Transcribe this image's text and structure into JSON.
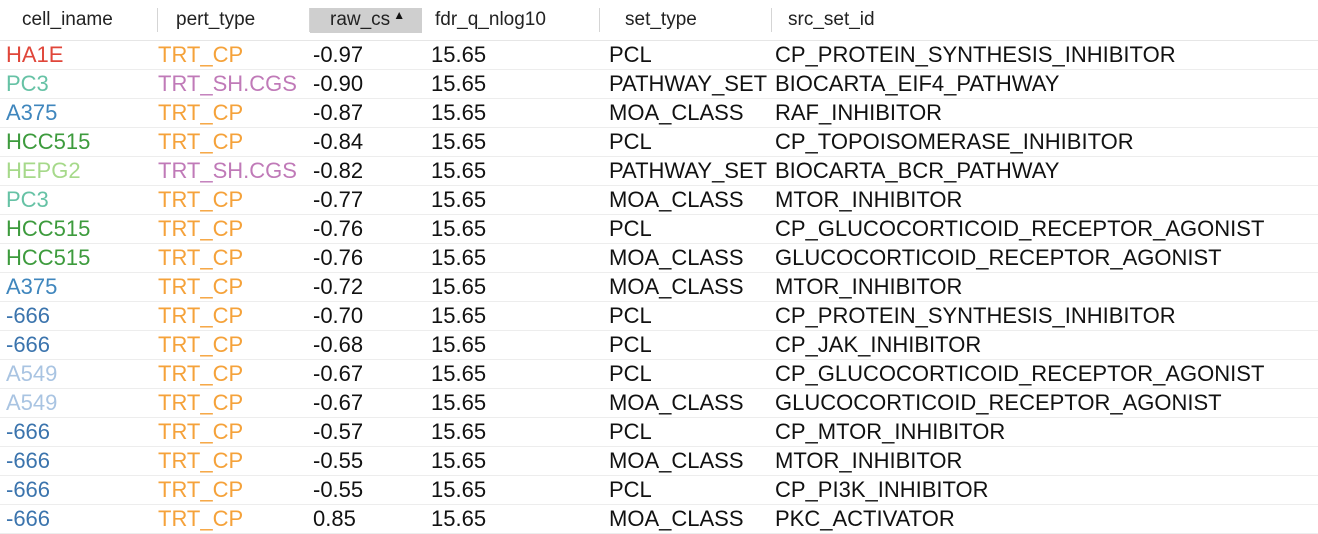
{
  "columns": [
    {
      "label": "cell_iname"
    },
    {
      "label": "pert_type"
    },
    {
      "label": "raw_cs",
      "sort_indicator": "▲"
    },
    {
      "label": "fdr_q_nlog10"
    },
    {
      "label": "set_type"
    },
    {
      "label": "src_set_id"
    }
  ],
  "colors": {
    "HA1E": "#e0463a",
    "PC3": "#66c2a5",
    "A375": "#3f86bd",
    "HCC515": "#3d9b3d",
    "HEPG2": "#a6d98a",
    "A549": "#a9c4e2",
    "-666": "#3b74ad",
    "TRT_CP": "#f5a23a",
    "TRT_SH.CGS": "#c07ab8"
  },
  "rows": [
    {
      "cell_iname": "HA1E",
      "pert_type": "TRT_CP",
      "raw_cs": "-0.97",
      "fdr_q_nlog10": "15.65",
      "set_type": "PCL",
      "src_set_id": "CP_PROTEIN_SYNTHESIS_INHIBITOR"
    },
    {
      "cell_iname": "PC3",
      "pert_type": "TRT_SH.CGS",
      "raw_cs": "-0.90",
      "fdr_q_nlog10": "15.65",
      "set_type": "PATHWAY_SET",
      "src_set_id": "BIOCARTA_EIF4_PATHWAY"
    },
    {
      "cell_iname": "A375",
      "pert_type": "TRT_CP",
      "raw_cs": "-0.87",
      "fdr_q_nlog10": "15.65",
      "set_type": "MOA_CLASS",
      "src_set_id": "RAF_INHIBITOR"
    },
    {
      "cell_iname": "HCC515",
      "pert_type": "TRT_CP",
      "raw_cs": "-0.84",
      "fdr_q_nlog10": "15.65",
      "set_type": "PCL",
      "src_set_id": "CP_TOPOISOMERASE_INHIBITOR"
    },
    {
      "cell_iname": "HEPG2",
      "pert_type": "TRT_SH.CGS",
      "raw_cs": "-0.82",
      "fdr_q_nlog10": "15.65",
      "set_type": "PATHWAY_SET",
      "src_set_id": "BIOCARTA_BCR_PATHWAY"
    },
    {
      "cell_iname": "PC3",
      "pert_type": "TRT_CP",
      "raw_cs": "-0.77",
      "fdr_q_nlog10": "15.65",
      "set_type": "MOA_CLASS",
      "src_set_id": "MTOR_INHIBITOR"
    },
    {
      "cell_iname": "HCC515",
      "pert_type": "TRT_CP",
      "raw_cs": "-0.76",
      "fdr_q_nlog10": "15.65",
      "set_type": "PCL",
      "src_set_id": "CP_GLUCOCORTICOID_RECEPTOR_AGONIST"
    },
    {
      "cell_iname": "HCC515",
      "pert_type": "TRT_CP",
      "raw_cs": "-0.76",
      "fdr_q_nlog10": "15.65",
      "set_type": "MOA_CLASS",
      "src_set_id": "GLUCOCORTICOID_RECEPTOR_AGONIST"
    },
    {
      "cell_iname": "A375",
      "pert_type": "TRT_CP",
      "raw_cs": "-0.72",
      "fdr_q_nlog10": "15.65",
      "set_type": "MOA_CLASS",
      "src_set_id": "MTOR_INHIBITOR"
    },
    {
      "cell_iname": "-666",
      "pert_type": "TRT_CP",
      "raw_cs": "-0.70",
      "fdr_q_nlog10": "15.65",
      "set_type": "PCL",
      "src_set_id": "CP_PROTEIN_SYNTHESIS_INHIBITOR"
    },
    {
      "cell_iname": "-666",
      "pert_type": "TRT_CP",
      "raw_cs": "-0.68",
      "fdr_q_nlog10": "15.65",
      "set_type": "PCL",
      "src_set_id": "CP_JAK_INHIBITOR"
    },
    {
      "cell_iname": "A549",
      "pert_type": "TRT_CP",
      "raw_cs": "-0.67",
      "fdr_q_nlog10": "15.65",
      "set_type": "PCL",
      "src_set_id": "CP_GLUCOCORTICOID_RECEPTOR_AGONIST"
    },
    {
      "cell_iname": "A549",
      "pert_type": "TRT_CP",
      "raw_cs": "-0.67",
      "fdr_q_nlog10": "15.65",
      "set_type": "MOA_CLASS",
      "src_set_id": "GLUCOCORTICOID_RECEPTOR_AGONIST"
    },
    {
      "cell_iname": "-666",
      "pert_type": "TRT_CP",
      "raw_cs": "-0.57",
      "fdr_q_nlog10": "15.65",
      "set_type": "PCL",
      "src_set_id": "CP_MTOR_INHIBITOR"
    },
    {
      "cell_iname": "-666",
      "pert_type": "TRT_CP",
      "raw_cs": "-0.55",
      "fdr_q_nlog10": "15.65",
      "set_type": "MOA_CLASS",
      "src_set_id": "MTOR_INHIBITOR"
    },
    {
      "cell_iname": "-666",
      "pert_type": "TRT_CP",
      "raw_cs": "-0.55",
      "fdr_q_nlog10": "15.65",
      "set_type": "PCL",
      "src_set_id": "CP_PI3K_INHIBITOR"
    },
    {
      "cell_iname": "-666",
      "pert_type": "TRT_CP",
      "raw_cs": "0.85",
      "fdr_q_nlog10": "15.65",
      "set_type": "MOA_CLASS",
      "src_set_id": "PKC_ACTIVATOR"
    }
  ]
}
